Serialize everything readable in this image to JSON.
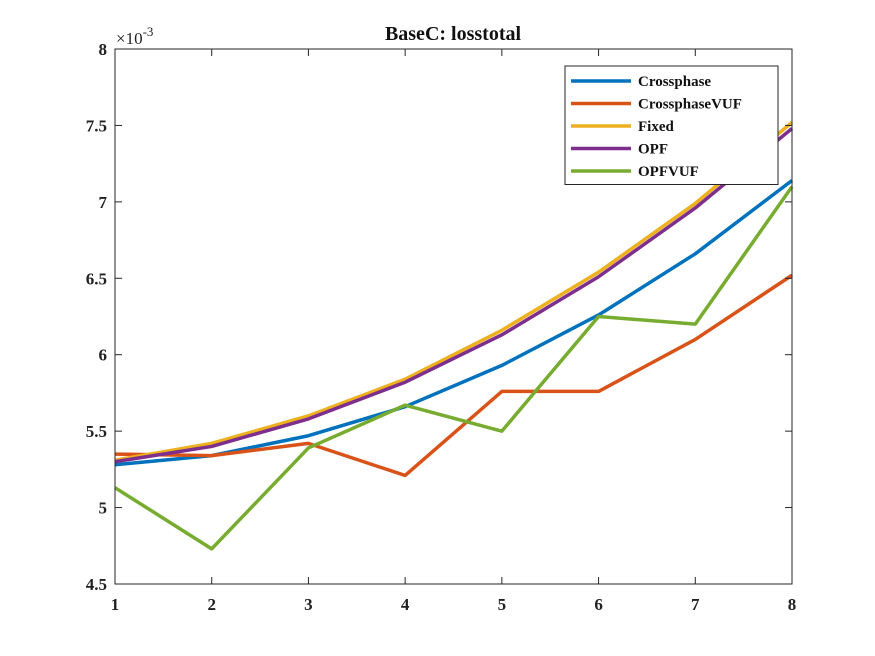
{
  "chart_data": {
    "type": "line",
    "title": "BaseC: losstotal",
    "x": [
      1,
      2,
      3,
      4,
      5,
      6,
      7,
      8
    ],
    "xlim": [
      1,
      8
    ],
    "ylim": [
      4.5,
      8
    ],
    "y_multiplier_label": "×10",
    "y_multiplier_exponent": "-3",
    "x_ticks": [
      "1",
      "2",
      "3",
      "4",
      "5",
      "6",
      "7",
      "8"
    ],
    "y_ticks": [
      "4.5",
      "5",
      "5.5",
      "6",
      "6.5",
      "7",
      "7.5",
      "8"
    ],
    "grid": false,
    "legend_position": "top-right",
    "series": [
      {
        "name": "Crossphase",
        "color": "#0072BD",
        "values": [
          5.28,
          5.34,
          5.47,
          5.66,
          5.93,
          6.26,
          6.66,
          7.14
        ]
      },
      {
        "name": "CrossphaseVUF",
        "color": "#D95319",
        "values": [
          5.35,
          5.34,
          5.42,
          5.21,
          5.76,
          5.76,
          6.1,
          6.52
        ]
      },
      {
        "name": "Fixed",
        "color": "#EDB120",
        "values": [
          5.31,
          5.42,
          5.6,
          5.84,
          6.16,
          6.54,
          6.99,
          7.52
        ]
      },
      {
        "name": "OPF",
        "color": "#7E2F8E",
        "values": [
          5.3,
          5.4,
          5.58,
          5.82,
          6.13,
          6.51,
          6.96,
          7.48
        ]
      },
      {
        "name": "OPFVUF",
        "color": "#77AC30",
        "values": [
          5.13,
          4.73,
          5.39,
          5.67,
          5.5,
          6.25,
          6.2,
          7.1
        ]
      }
    ]
  }
}
